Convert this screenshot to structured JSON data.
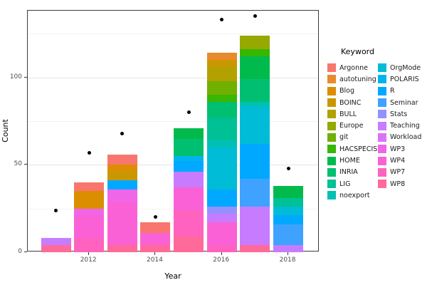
{
  "chart_data": {
    "type": "bar",
    "subtype": "stacked-bar-with-points",
    "title": "",
    "xlabel": "Year",
    "ylabel": "Count",
    "legend_title": "Keyword",
    "x_tick_labels": [
      "2012",
      "2014",
      "2016",
      "2018"
    ],
    "x_tick_years": [
      2012,
      2014,
      2016,
      2018
    ],
    "y_major_ticks": [
      0,
      50,
      100
    ],
    "y_minor_ticks": [
      25,
      75,
      125
    ],
    "ylim": [
      0,
      138
    ],
    "grid": "major+minor",
    "legend_position": "right",
    "keywords": [
      {
        "label": "Argonne",
        "color": "#F8766D"
      },
      {
        "label": "autotuning",
        "color": "#E98A2C"
      },
      {
        "label": "Blog",
        "color": "#DB8E00"
      },
      {
        "label": "BOINC",
        "color": "#C99800"
      },
      {
        "label": "BULL",
        "color": "#B2A100"
      },
      {
        "label": "Europe",
        "color": "#95A900"
      },
      {
        "label": "git",
        "color": "#6FB000"
      },
      {
        "label": "HACSPECIS",
        "color": "#39B600"
      },
      {
        "label": "HOME",
        "color": "#00BB4C"
      },
      {
        "label": "INRIA",
        "color": "#00BF71"
      },
      {
        "label": "LIG",
        "color": "#00C096"
      },
      {
        "label": "noexport",
        "color": "#00C0B4"
      },
      {
        "label": "OrgMode",
        "color": "#00BCD6"
      },
      {
        "label": "POLARIS",
        "color": "#00B5EE"
      },
      {
        "label": "R",
        "color": "#00A9FF"
      },
      {
        "label": "Seminar",
        "color": "#3FA2FF"
      },
      {
        "label": "Stats",
        "color": "#9590FF"
      },
      {
        "label": "Teaching",
        "color": "#C77CFF"
      },
      {
        "label": "Workload",
        "color": "#DC71FA"
      },
      {
        "label": "WP3",
        "color": "#F066E9"
      },
      {
        "label": "WP4",
        "color": "#FB61D7"
      },
      {
        "label": "WP7",
        "color": "#FF62BF"
      },
      {
        "label": "WP8",
        "color": "#FF6A9A"
      }
    ],
    "legend_columns": [
      [
        "Argonne",
        "autotuning",
        "Blog",
        "BOINC",
        "BULL",
        "Europe",
        "git",
        "HACSPECIS",
        "HOME",
        "INRIA",
        "LIG",
        "noexport"
      ],
      [
        "OrgMode",
        "POLARIS",
        "R",
        "Seminar",
        "Stats",
        "Teaching",
        "Workload",
        "WP3",
        "WP4",
        "WP7",
        "WP8"
      ]
    ],
    "bars": [
      {
        "year": 2011,
        "total": 8,
        "point": 24,
        "segments": [
          {
            "keyword": "WP8",
            "value": 4
          },
          {
            "keyword": "Teaching",
            "value": 4
          }
        ]
      },
      {
        "year": 2012,
        "total": 40,
        "point": 57,
        "segments": [
          {
            "keyword": "WP7",
            "value": 8
          },
          {
            "keyword": "WP4",
            "value": 13
          },
          {
            "keyword": "WP3",
            "value": 4
          },
          {
            "keyword": "Blog",
            "value": 10
          },
          {
            "keyword": "Argonne",
            "value": 5
          }
        ]
      },
      {
        "year": 2013,
        "total": 56,
        "point": 68,
        "segments": [
          {
            "keyword": "WP8",
            "value": 4
          },
          {
            "keyword": "WP4",
            "value": 25
          },
          {
            "keyword": "WP3",
            "value": 7
          },
          {
            "keyword": "R",
            "value": 5
          },
          {
            "keyword": "BOINC",
            "value": 5
          },
          {
            "keyword": "Blog",
            "value": 4
          },
          {
            "keyword": "Argonne",
            "value": 6
          }
        ]
      },
      {
        "year": 2014,
        "total": 17,
        "point": 20,
        "segments": [
          {
            "keyword": "WP8",
            "value": 4
          },
          {
            "keyword": "WP4",
            "value": 7
          },
          {
            "keyword": "Argonne",
            "value": 6
          }
        ]
      },
      {
        "year": 2015,
        "total": 71,
        "point": 80,
        "segments": [
          {
            "keyword": "WP8",
            "value": 9
          },
          {
            "keyword": "WP7",
            "value": 15
          },
          {
            "keyword": "WP4",
            "value": 13
          },
          {
            "keyword": "Teaching",
            "value": 9
          },
          {
            "keyword": "R",
            "value": 6
          },
          {
            "keyword": "POLARIS",
            "value": 3
          },
          {
            "keyword": "INRIA",
            "value": 10
          },
          {
            "keyword": "HOME",
            "value": 6
          }
        ]
      },
      {
        "year": 2016,
        "total": 114,
        "point": 133,
        "segments": [
          {
            "keyword": "WP7",
            "value": 4
          },
          {
            "keyword": "WP4",
            "value": 13
          },
          {
            "keyword": "Teaching",
            "value": 5
          },
          {
            "keyword": "Stats",
            "value": 4
          },
          {
            "keyword": "R",
            "value": 10
          },
          {
            "keyword": "OrgMode",
            "value": 24
          },
          {
            "keyword": "noexport",
            "value": 4
          },
          {
            "keyword": "LIG",
            "value": 13
          },
          {
            "keyword": "INRIA",
            "value": 9
          },
          {
            "keyword": "HACSPECIS",
            "value": 4
          },
          {
            "keyword": "git",
            "value": 8
          },
          {
            "keyword": "BULL",
            "value": 8
          },
          {
            "keyword": "BOINC",
            "value": 4
          },
          {
            "keyword": "autotuning",
            "value": 4
          }
        ]
      },
      {
        "year": 2017,
        "total": 124,
        "point": 135,
        "segments": [
          {
            "keyword": "WP8",
            "value": 4
          },
          {
            "keyword": "Teaching",
            "value": 22
          },
          {
            "keyword": "Seminar",
            "value": 16
          },
          {
            "keyword": "R",
            "value": 20
          },
          {
            "keyword": "OrgMode",
            "value": 21
          },
          {
            "keyword": "noexport",
            "value": 3
          },
          {
            "keyword": "INRIA",
            "value": 13
          },
          {
            "keyword": "HOME",
            "value": 13
          },
          {
            "keyword": "HACSPECIS",
            "value": 4
          },
          {
            "keyword": "Europe",
            "value": 8
          }
        ]
      },
      {
        "year": 2018,
        "total": 38,
        "point": 48,
        "segments": [
          {
            "keyword": "Teaching",
            "value": 4
          },
          {
            "keyword": "Seminar",
            "value": 12
          },
          {
            "keyword": "R",
            "value": 5
          },
          {
            "keyword": "OrgMode",
            "value": 5
          },
          {
            "keyword": "LIG",
            "value": 5
          },
          {
            "keyword": "HOME",
            "value": 7
          }
        ]
      }
    ],
    "colors": {
      "point": "#000000",
      "panel_border": "#3c3c3c",
      "grid_major": "#e4e4e4",
      "grid_minor": "#f3f3f3",
      "tick_text": "#4d4d4d",
      "axis_title_text": "#000000",
      "background": "#ffffff"
    }
  }
}
